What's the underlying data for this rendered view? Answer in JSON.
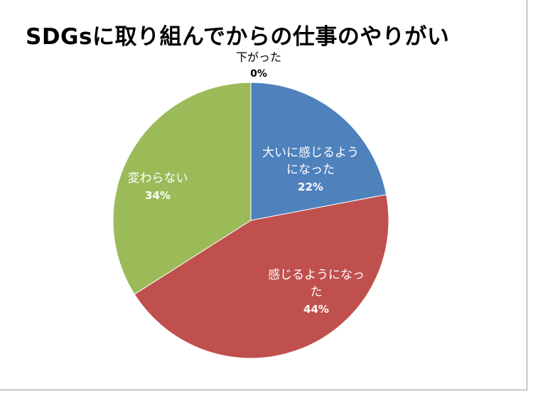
{
  "chart_data": {
    "type": "pie",
    "title": "SDGsに取り組んでからの仕事のやりがい",
    "start_angle_deg": 0,
    "direction": "clockwise",
    "slices": [
      {
        "label": [
          "大いに感じるよう",
          "になった"
        ],
        "value": 22,
        "value_label": "22%",
        "color": "#4f81bd",
        "label_color": "#ffffff"
      },
      {
        "label": [
          "感じるようになっ",
          "た"
        ],
        "value": 44,
        "value_label": "44%",
        "color": "#c0504d",
        "label_color": "#ffffff"
      },
      {
        "label": [
          "変わらない"
        ],
        "value": 34,
        "value_label": "34%",
        "color": "#9bbb59",
        "label_color": "#ffffff"
      },
      {
        "label": [
          "下がった"
        ],
        "value": 0,
        "value_label": "0%",
        "color": "#8064a2",
        "label_color": "#000000"
      }
    ]
  }
}
